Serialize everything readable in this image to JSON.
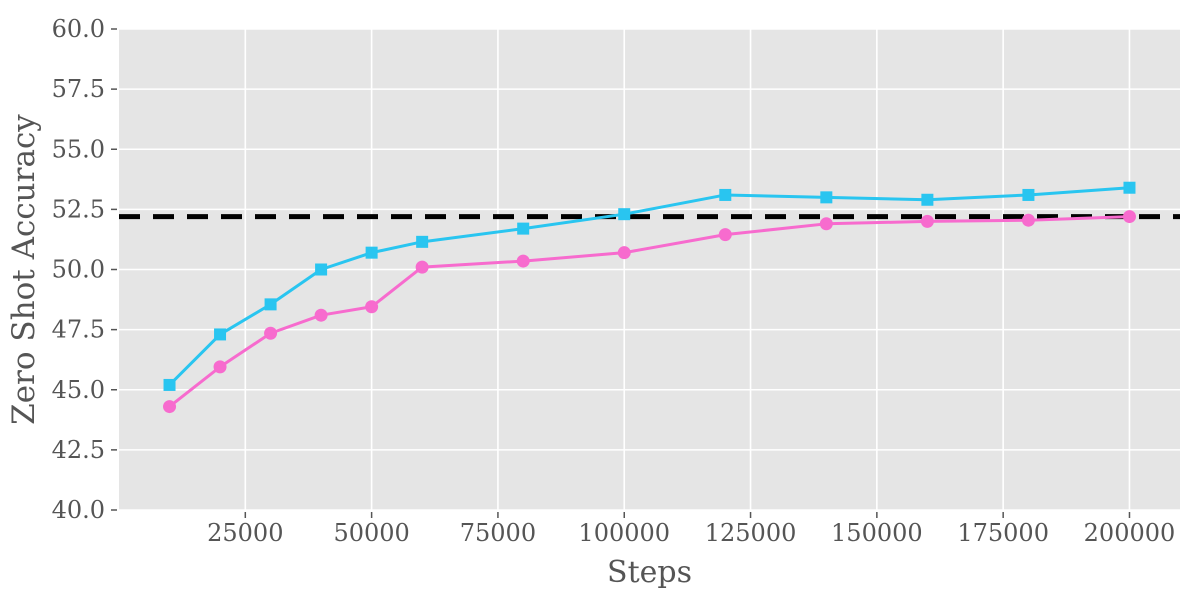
{
  "figure": {
    "background_color": "#ffffff",
    "plot_background_color": "#e5e5e5",
    "gridline_color": "#ffffff",
    "tick_color": "#555555",
    "label_color": "#555555"
  },
  "chart_data": {
    "type": "line",
    "title": "",
    "xlabel": "Steps",
    "ylabel": "Zero Shot Accuracy",
    "xlim": [
      0,
      210000
    ],
    "ylim": [
      40,
      60
    ],
    "grid": true,
    "legend_position": "none",
    "x_ticks": [
      25000,
      50000,
      75000,
      100000,
      125000,
      150000,
      175000,
      200000
    ],
    "x_tick_labels": [
      "25000",
      "50000",
      "75000",
      "100000",
      "125000",
      "150000",
      "175000",
      "200000"
    ],
    "y_ticks": [
      40.0,
      42.5,
      45.0,
      47.5,
      50.0,
      52.5,
      55.0,
      57.5,
      60.0
    ],
    "y_tick_labels": [
      "40.0",
      "42.5",
      "45.0",
      "47.5",
      "50.0",
      "52.5",
      "55.0",
      "57.5",
      "60.0"
    ],
    "x": [
      10000,
      20000,
      30000,
      40000,
      50000,
      60000,
      80000,
      100000,
      120000,
      140000,
      160000,
      180000,
      200000
    ],
    "series": [
      {
        "name": "blue-squares-series",
        "color": "#29c5f0",
        "marker": "square",
        "values": [
          45.2,
          47.3,
          48.55,
          50.0,
          50.7,
          51.15,
          51.7,
          52.3,
          53.1,
          53.0,
          52.9,
          53.1,
          53.4
        ]
      },
      {
        "name": "pink-circles-series",
        "color": "#f76bce",
        "marker": "circle",
        "values": [
          44.3,
          45.95,
          47.35,
          48.1,
          48.45,
          50.1,
          50.35,
          50.7,
          51.45,
          51.9,
          52.0,
          52.05,
          52.2
        ]
      }
    ],
    "baseline": {
      "value": 52.2,
      "color": "#000000",
      "style": "dashed"
    }
  }
}
